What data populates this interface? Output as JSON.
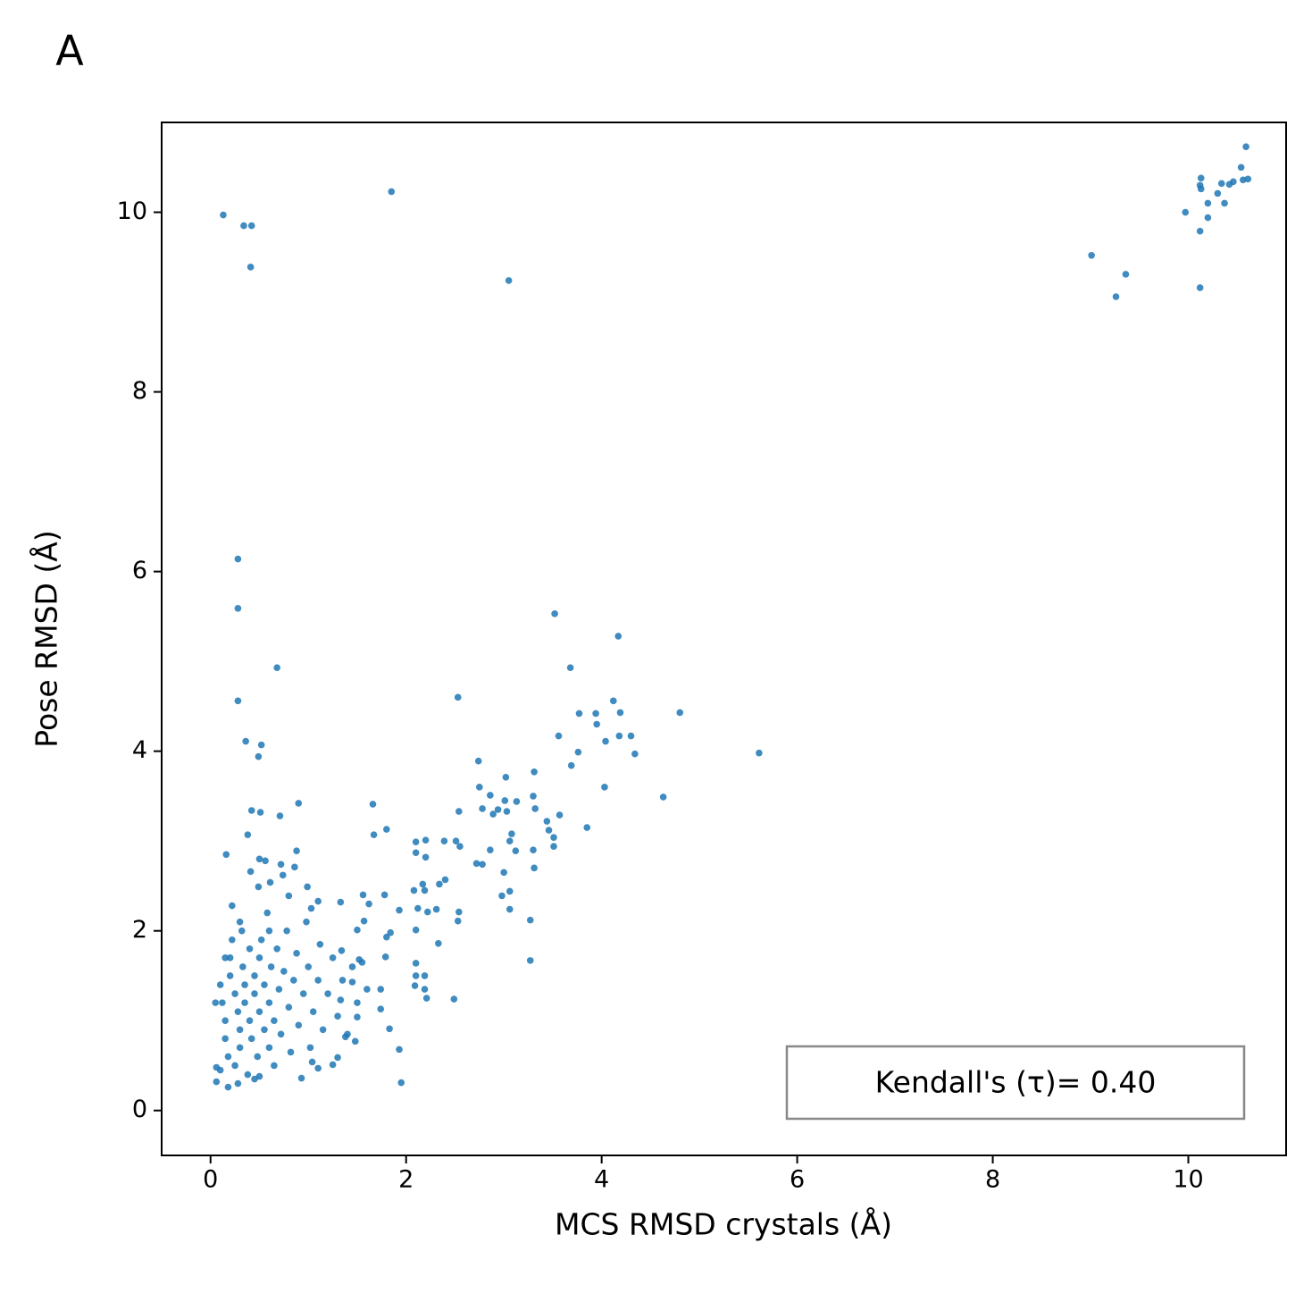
{
  "chart_data": {
    "type": "scatter",
    "panel_label": "A",
    "xlabel": "MCS RMSD crystals (Å)",
    "ylabel": "Pose RMSD (Å)",
    "annotation": "Kendall's (τ)= 0.40",
    "color": "#1f77b4",
    "xlim": [
      -0.5,
      11.0
    ],
    "ylim": [
      -0.5,
      11.0
    ],
    "xticks": [
      0,
      2,
      4,
      6,
      8,
      10
    ],
    "yticks": [
      0,
      2,
      4,
      6,
      8,
      10
    ],
    "x": [
      0.13,
      0.34,
      0.42,
      0.41,
      1.85,
      3.05,
      9.01,
      9.26,
      9.36,
      9.97,
      10.12,
      10.13,
      10.13,
      10.2,
      10.12,
      10.12,
      10.2,
      10.3,
      10.34,
      10.37,
      10.42,
      10.46,
      10.54,
      10.56,
      10.59,
      10.61,
      0.28,
      0.28,
      0.68,
      0.28,
      0.36,
      0.52,
      0.49,
      0.42,
      0.51,
      0.71,
      0.9,
      0.38,
      0.16,
      3.52,
      4.17,
      3.68,
      2.53,
      4.12,
      4.8,
      3.77,
      3.94,
      4.19,
      3.95,
      3.56,
      4.18,
      4.3,
      4.04,
      5.61,
      3.76,
      4.34,
      3.69,
      2.74,
      3.02,
      3.31,
      4.03,
      2.75,
      2.86,
      3.3,
      4.63,
      3.01,
      3.13,
      2.78,
      2.89,
      2.94,
      3.32,
      3.03,
      2.54,
      3.57,
      1.66,
      1.8,
      1.67,
      3.44,
      3.46,
      3.85,
      3.08,
      3.51,
      3.06,
      2.1,
      2.2,
      2.39,
      2.51,
      2.55,
      2.86,
      3.3,
      3.12,
      2.1,
      2.2,
      3.51,
      2.72,
      2.78,
      3.31,
      3.0,
      2.4,
      2.34,
      2.17,
      2.19,
      2.08,
      3.06,
      2.98,
      2.12,
      2.22,
      2.31,
      2.54,
      3.06,
      2.1,
      2.53,
      3.27,
      2.33,
      3.27,
      2.1,
      2.1,
      2.19,
      2.19,
      2.09,
      2.21,
      2.49,
      1.93,
      1.95,
      1.83,
      1.78,
      1.56,
      1.62,
      1.93,
      1.8,
      1.84,
      1.79,
      1.74,
      1.74,
      1.03,
      0.8,
      0.86,
      0.88,
      0.56,
      0.5,
      0.72,
      0.74,
      0.41,
      0.49,
      0.61,
      0.99,
      1.1,
      1.33,
      1.57,
      1.5,
      1.34,
      1.52,
      1.45,
      1.33,
      1.5,
      1.38,
      1.48,
      1.3,
      1.25,
      0.93,
      1.04,
      1.1,
      0.18,
      0.06,
      0.06,
      0.5,
      0.1,
      0.12,
      0.15,
      0.15,
      0.18,
      0.2,
      0.2,
      0.22,
      0.25,
      0.25,
      0.28,
      0.3,
      0.3,
      0.32,
      0.33,
      0.35,
      0.35,
      0.38,
      0.4,
      0.4,
      0.42,
      0.45,
      0.45,
      0.48,
      0.5,
      0.5,
      0.52,
      0.55,
      0.55,
      0.58,
      0.6,
      0.6,
      0.62,
      0.65,
      0.65,
      0.68,
      0.7,
      0.72,
      0.75,
      0.78,
      0.8,
      0.82,
      0.85,
      0.88,
      0.9,
      0.95,
      0.98,
      1.0,
      1.02,
      1.05,
      1.1,
      1.12,
      1.15,
      1.2,
      1.25,
      1.3,
      1.35,
      1.4,
      1.45,
      1.5,
      1.55,
      1.6,
      0.05,
      0.1,
      0.28,
      0.45,
      0.22,
      0.6,
      0.3,
      0.15
    ],
    "y": [
      9.97,
      9.85,
      9.85,
      9.39,
      10.23,
      9.24,
      9.52,
      9.06,
      9.31,
      10.0,
      10.3,
      10.38,
      10.26,
      10.1,
      9.79,
      9.16,
      9.94,
      10.21,
      10.32,
      10.1,
      10.31,
      10.34,
      10.5,
      10.36,
      10.73,
      10.37,
      6.14,
      5.59,
      4.93,
      4.56,
      4.11,
      4.07,
      3.94,
      3.34,
      3.32,
      3.28,
      3.42,
      3.07,
      2.85,
      5.53,
      5.28,
      4.93,
      4.6,
      4.56,
      4.43,
      4.42,
      4.42,
      4.43,
      4.3,
      4.17,
      4.17,
      4.17,
      4.11,
      3.98,
      3.99,
      3.97,
      3.84,
      3.89,
      3.71,
      3.77,
      3.6,
      3.6,
      3.51,
      3.5,
      3.49,
      3.45,
      3.44,
      3.36,
      3.3,
      3.35,
      3.36,
      3.33,
      3.33,
      3.29,
      3.41,
      3.13,
      3.07,
      3.22,
      3.12,
      3.15,
      3.08,
      3.04,
      3.0,
      2.99,
      3.01,
      3.0,
      3.0,
      2.94,
      2.9,
      2.9,
      2.89,
      2.87,
      2.82,
      2.94,
      2.75,
      2.74,
      2.7,
      2.65,
      2.57,
      2.52,
      2.52,
      2.45,
      2.45,
      2.44,
      2.39,
      2.25,
      2.21,
      2.24,
      2.21,
      2.24,
      2.01,
      2.11,
      2.12,
      1.86,
      1.67,
      1.64,
      1.5,
      1.5,
      1.35,
      1.39,
      1.25,
      1.24,
      0.68,
      0.31,
      0.91,
      2.4,
      2.4,
      2.3,
      2.23,
      1.93,
      1.98,
      1.71,
      1.35,
      1.13,
      2.25,
      2.39,
      2.71,
      2.89,
      2.78,
      2.8,
      2.74,
      2.62,
      2.66,
      2.49,
      2.54,
      2.49,
      2.33,
      2.32,
      2.11,
      2.01,
      1.78,
      1.68,
      1.43,
      1.23,
      1.04,
      0.82,
      0.77,
      0.59,
      0.51,
      0.36,
      0.54,
      0.47,
      0.26,
      0.32,
      0.48,
      0.38,
      1.4,
      1.2,
      1.0,
      0.8,
      0.6,
      1.7,
      1.5,
      1.9,
      1.3,
      0.5,
      1.1,
      0.9,
      0.7,
      2.0,
      1.6,
      1.4,
      1.2,
      0.4,
      1.8,
      1.0,
      0.8,
      1.5,
      1.3,
      0.6,
      1.7,
      1.1,
      1.9,
      0.9,
      1.4,
      2.2,
      1.2,
      0.7,
      1.6,
      1.0,
      0.5,
      1.8,
      1.35,
      0.85,
      1.55,
      2.0,
      1.15,
      0.65,
      1.45,
      1.75,
      0.95,
      1.3,
      2.1,
      1.6,
      0.7,
      1.1,
      1.45,
      1.85,
      0.9,
      1.3,
      1.7,
      1.05,
      1.45,
      0.85,
      1.6,
      1.2,
      1.65,
      1.35,
      1.2,
      0.45,
      0.3,
      0.35,
      2.28,
      2.0,
      2.1,
      1.7
    ]
  }
}
